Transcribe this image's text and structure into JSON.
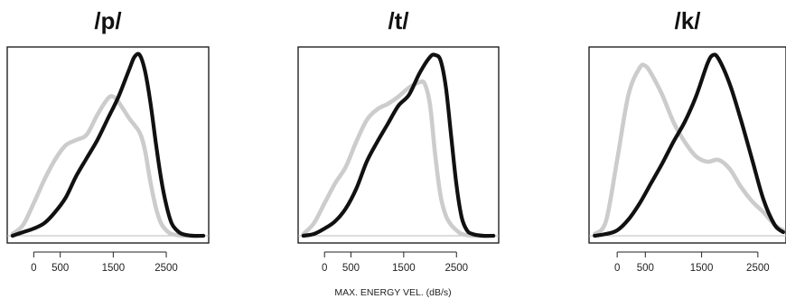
{
  "chart_data": [
    {
      "type": "line",
      "title": "/p/",
      "xlabel": "MAX. ENERGY VEL. (dB/s)",
      "xlim": [
        -500,
        3300
      ],
      "ylim": [
        0,
        1.0
      ],
      "xticks": [
        0,
        500,
        1500,
        2500
      ],
      "series": [
        {
          "color": "#111111",
          "x": [
            -400,
            -200,
            0,
            200,
            400,
            600,
            800,
            1000,
            1200,
            1400,
            1600,
            1800,
            1900,
            2000,
            2100,
            2200,
            2300,
            2400,
            2500,
            2600,
            2700,
            2800,
            3000,
            3200
          ],
          "y": [
            0.0,
            0.02,
            0.04,
            0.07,
            0.13,
            0.21,
            0.33,
            0.43,
            0.53,
            0.65,
            0.77,
            0.92,
            0.99,
            1.0,
            0.91,
            0.74,
            0.52,
            0.32,
            0.17,
            0.07,
            0.03,
            0.01,
            0.0,
            0.0
          ]
        },
        {
          "color": "#cccccc",
          "x": [
            -400,
            -200,
            0,
            200,
            400,
            600,
            800,
            1000,
            1200,
            1400,
            1500,
            1600,
            1800,
            2000,
            2100,
            2200,
            2300,
            2400,
            2500,
            2600,
            2800,
            3000
          ],
          "y": [
            0.01,
            0.06,
            0.18,
            0.31,
            0.42,
            0.5,
            0.53,
            0.56,
            0.67,
            0.76,
            0.77,
            0.74,
            0.65,
            0.57,
            0.47,
            0.3,
            0.16,
            0.07,
            0.03,
            0.01,
            0.0,
            0.0
          ]
        }
      ]
    },
    {
      "type": "line",
      "title": "/t/",
      "xlabel": "MAX. ENERGY VEL. (dB/s)",
      "xlim": [
        -500,
        3300
      ],
      "ylim": [
        0,
        1.0
      ],
      "xticks": [
        0,
        500,
        1500,
        2500
      ],
      "series": [
        {
          "color": "#111111",
          "x": [
            -400,
            -200,
            0,
            200,
            400,
            600,
            800,
            1000,
            1200,
            1400,
            1600,
            1800,
            2000,
            2100,
            2200,
            2300,
            2400,
            2500,
            2600,
            2700,
            2800,
            3000,
            3200
          ],
          "y": [
            0.0,
            0.01,
            0.04,
            0.08,
            0.15,
            0.26,
            0.41,
            0.52,
            0.62,
            0.72,
            0.78,
            0.9,
            0.99,
            1.0,
            0.97,
            0.82,
            0.55,
            0.28,
            0.1,
            0.03,
            0.01,
            0.0,
            0.0
          ]
        },
        {
          "color": "#cccccc",
          "x": [
            -400,
            -200,
            0,
            200,
            400,
            600,
            800,
            1000,
            1200,
            1400,
            1600,
            1800,
            1900,
            2000,
            2100,
            2200,
            2300,
            2400,
            2500,
            2600,
            2800,
            3000
          ],
          "y": [
            0.01,
            0.07,
            0.18,
            0.29,
            0.38,
            0.52,
            0.64,
            0.7,
            0.73,
            0.77,
            0.82,
            0.85,
            0.84,
            0.72,
            0.44,
            0.22,
            0.11,
            0.06,
            0.03,
            0.01,
            0.0,
            0.0
          ]
        }
      ]
    },
    {
      "type": "line",
      "title": "/k/",
      "xlabel": "MAX. ENERGY VEL. (dB/s)",
      "xlim": [
        -500,
        3000
      ],
      "ylim": [
        0,
        1.0
      ],
      "xticks": [
        0,
        500,
        1500,
        2500
      ],
      "series": [
        {
          "color": "#111111",
          "x": [
            -400,
            -200,
            0,
            200,
            400,
            600,
            800,
            1000,
            1200,
            1400,
            1600,
            1700,
            1800,
            2000,
            2200,
            2400,
            2600,
            2800,
            2950
          ],
          "y": [
            0.0,
            0.01,
            0.03,
            0.09,
            0.18,
            0.29,
            0.4,
            0.52,
            0.63,
            0.77,
            0.95,
            1.0,
            0.98,
            0.84,
            0.64,
            0.42,
            0.2,
            0.06,
            0.02
          ]
        },
        {
          "color": "#cccccc",
          "x": [
            -400,
            -200,
            0,
            200,
            400,
            500,
            600,
            800,
            1000,
            1200,
            1400,
            1600,
            1800,
            2000,
            2200,
            2400,
            2600,
            2800,
            2950
          ],
          "y": [
            0.01,
            0.08,
            0.42,
            0.78,
            0.93,
            0.94,
            0.9,
            0.78,
            0.63,
            0.52,
            0.44,
            0.41,
            0.42,
            0.37,
            0.27,
            0.19,
            0.13,
            0.06,
            0.03
          ]
        }
      ]
    }
  ]
}
